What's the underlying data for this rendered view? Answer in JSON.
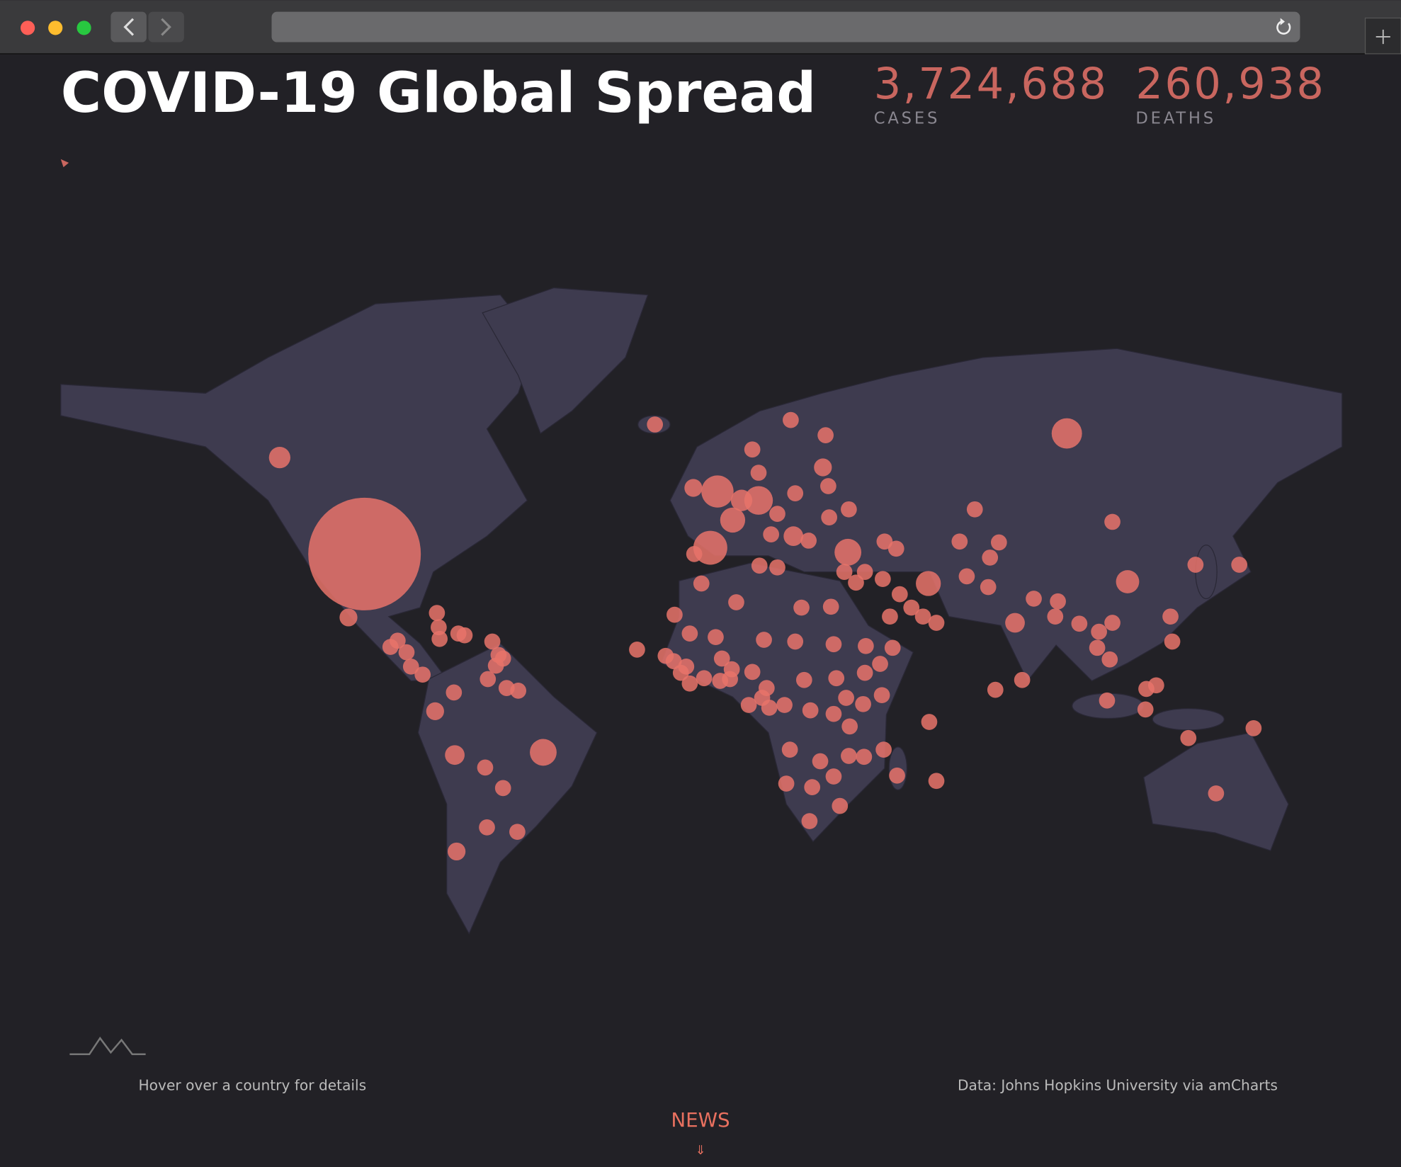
{
  "header": {
    "title": "COVID-19 Global Spread",
    "stats": [
      {
        "value": "3,724,688",
        "label": "CASES"
      },
      {
        "value": "260,938",
        "label": "DEATHS"
      }
    ]
  },
  "footer": {
    "hint": "Hover over a country for details",
    "source": "Data: Johns Hopkins University via amCharts",
    "nav": "NEWS",
    "nav_arrow": "⇓"
  }
}
